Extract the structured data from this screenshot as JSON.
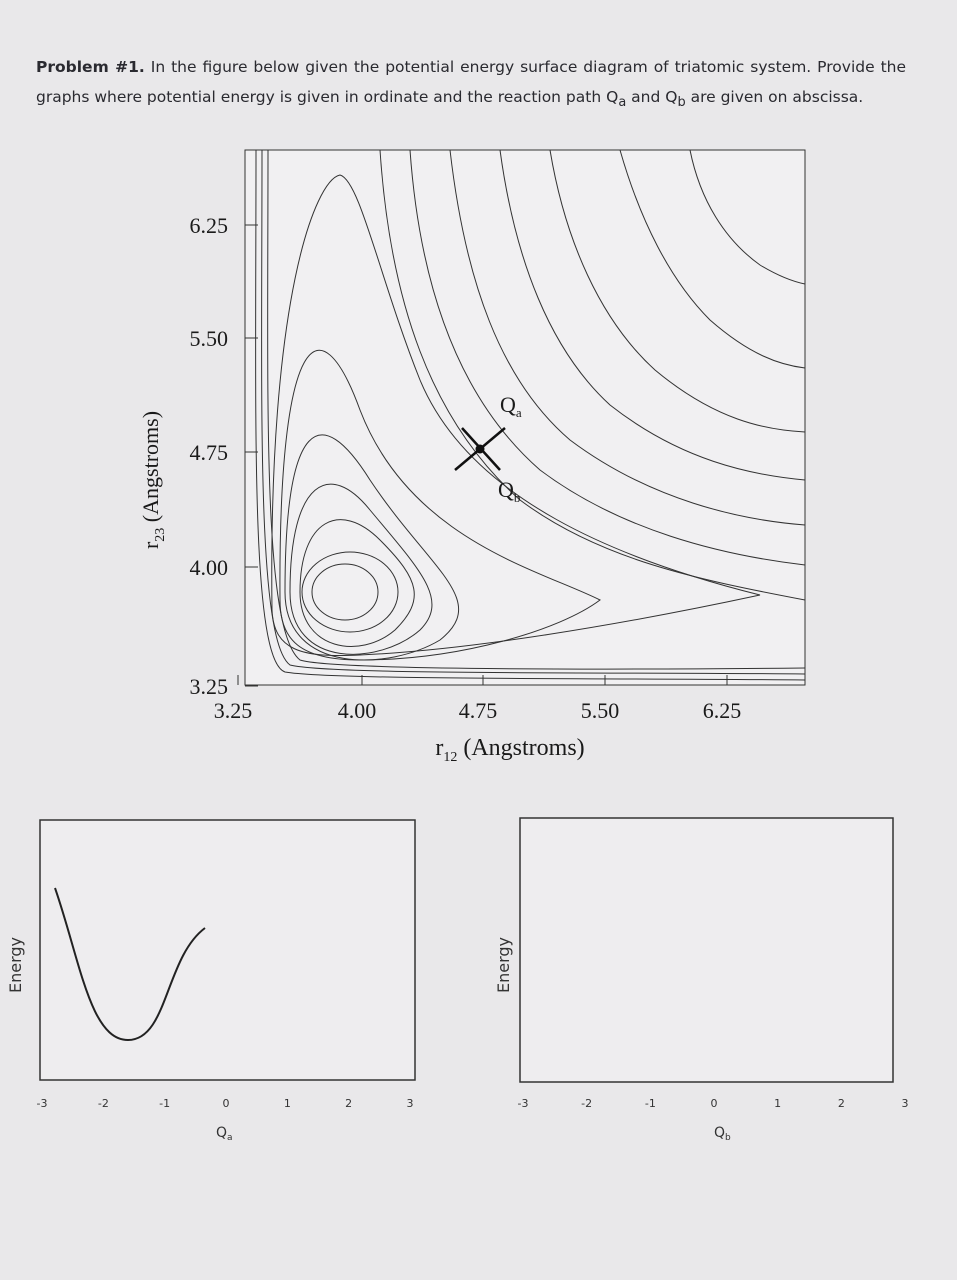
{
  "problem": {
    "label": "Problem #1.",
    "text_1": "In the figure below given the potential energy surface diagram of triatomic system. Provide the graphs where potential energy is given in ordinate and the reaction path ",
    "q_a": {
      "main": "Q",
      "sub": "a"
    },
    "text_2": " and ",
    "q_b": {
      "main": "Q",
      "sub": "b"
    },
    "text_3": " are given on abscissa."
  },
  "contour_plot": {
    "y_axis_label": {
      "symbol": "r",
      "sub": "23",
      "unit": " (Angstroms)"
    },
    "x_axis_label": {
      "symbol": "r",
      "sub": "12",
      "unit": " (Angstroms)"
    },
    "y_ticks": [
      "6.25",
      "5.50",
      "4.75",
      "4.00",
      "3.25"
    ],
    "x_ticks": [
      "3.25",
      "4.00",
      "4.75",
      "5.50",
      "6.25"
    ],
    "label_a": {
      "main": "Q",
      "sub": "a"
    },
    "label_b": {
      "main": "Q",
      "sub": "b"
    }
  },
  "graphs": [
    {
      "y_label": "Energy",
      "x_ticks": [
        "-3",
        "-2",
        "-1",
        "0",
        "1",
        "2",
        "3"
      ],
      "x_label": {
        "main": "Q",
        "sub": "a"
      }
    },
    {
      "y_label": "Energy",
      "x_ticks": [
        "-3",
        "-2",
        "-1",
        "0",
        "1",
        "2",
        "3"
      ],
      "x_label": {
        "main": "Q",
        "sub": "b"
      }
    }
  ]
}
